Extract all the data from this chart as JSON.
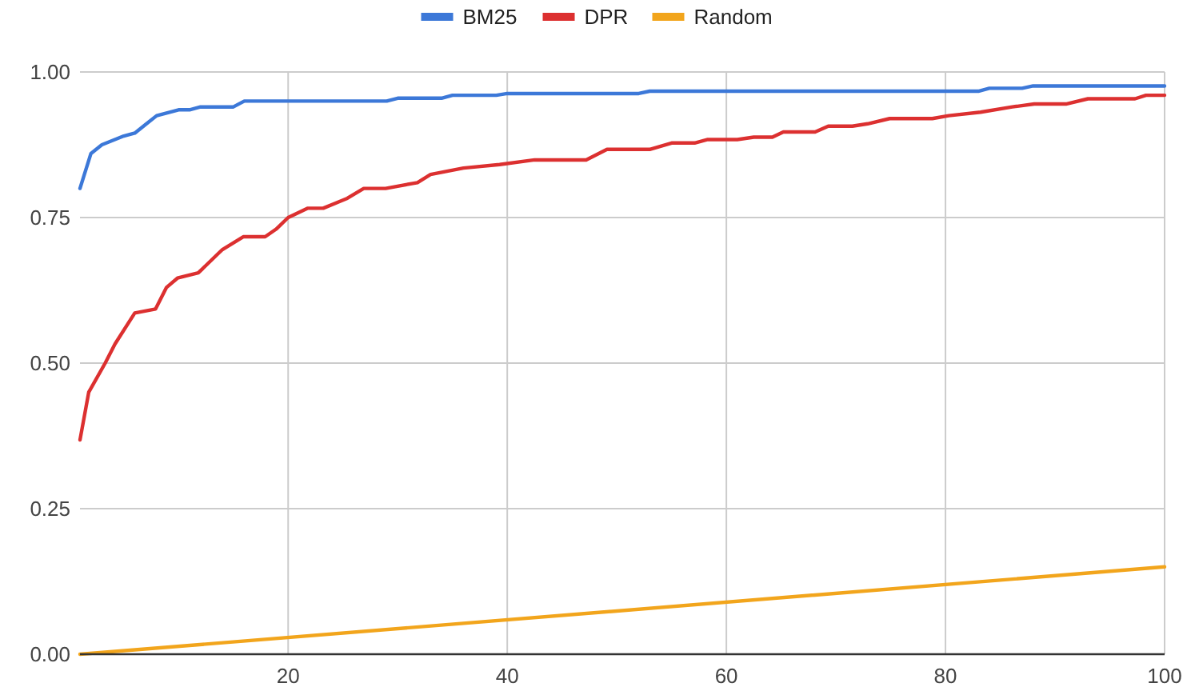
{
  "chart_data": {
    "type": "line",
    "xlim": [
      1,
      100
    ],
    "xticks": [
      20,
      40,
      60,
      80,
      100
    ],
    "ylim": [
      0,
      1
    ],
    "yticks": [
      {
        "value": 0,
        "label": "0.00"
      },
      {
        "value": 0.25,
        "label": "0.25"
      },
      {
        "value": 0.5,
        "label": "0.50"
      },
      {
        "value": 0.75,
        "label": "0.75"
      },
      {
        "value": 1,
        "label": "1.00"
      }
    ],
    "grid": true,
    "legend": "top",
    "marker": "none",
    "line_style": "solid",
    "series": [
      {
        "name": "BM25",
        "color": "#3c78d8",
        "x": [
          1,
          2,
          3,
          5,
          6,
          7,
          8,
          10,
          11,
          12,
          15,
          16,
          29,
          30,
          34,
          35,
          39,
          40,
          52,
          53,
          83,
          84,
          87,
          88,
          100
        ],
        "values": [
          0.8,
          0.86,
          0.875,
          0.89,
          0.895,
          0.91,
          0.925,
          0.935,
          0.935,
          0.94,
          0.94,
          0.95,
          0.95,
          0.955,
          0.955,
          0.96,
          0.96,
          0.963,
          0.963,
          0.967,
          0.967,
          0.972,
          0.972,
          0.976,
          0.976
        ]
      },
      {
        "name": "DPR",
        "color": "#dc3030",
        "x": [
          1,
          1.8,
          3.3,
          4.2,
          6,
          7.9,
          8.9,
          9.9,
          11.8,
          14,
          15.9,
          17.9,
          18.9,
          20,
          21.8,
          23.2,
          25.4,
          26.9,
          28.9,
          31.8,
          33,
          36,
          39.3,
          42.5,
          47.2,
          49.1,
          53,
          55,
          57.1,
          58.3,
          61,
          62.5,
          64.2,
          65.2,
          68.1,
          69.3,
          71.5,
          72.9,
          74.9,
          78.8,
          80.3,
          83.2,
          86.1,
          88.1,
          91,
          93,
          97.3,
          98.3,
          100
        ],
        "values": [
          0.368,
          0.45,
          0.5,
          0.533,
          0.586,
          0.593,
          0.63,
          0.646,
          0.655,
          0.695,
          0.717,
          0.717,
          0.73,
          0.75,
          0.766,
          0.766,
          0.783,
          0.8,
          0.8,
          0.81,
          0.824,
          0.835,
          0.841,
          0.849,
          0.849,
          0.867,
          0.867,
          0.878,
          0.878,
          0.884,
          0.884,
          0.888,
          0.888,
          0.897,
          0.897,
          0.907,
          0.907,
          0.911,
          0.92,
          0.92,
          0.925,
          0.931,
          0.94,
          0.945,
          0.945,
          0.954,
          0.954,
          0.96,
          0.96
        ]
      },
      {
        "name": "Random",
        "color": "#f2a51c",
        "x": [
          1,
          100
        ],
        "values": [
          0,
          0.15
        ]
      }
    ]
  }
}
